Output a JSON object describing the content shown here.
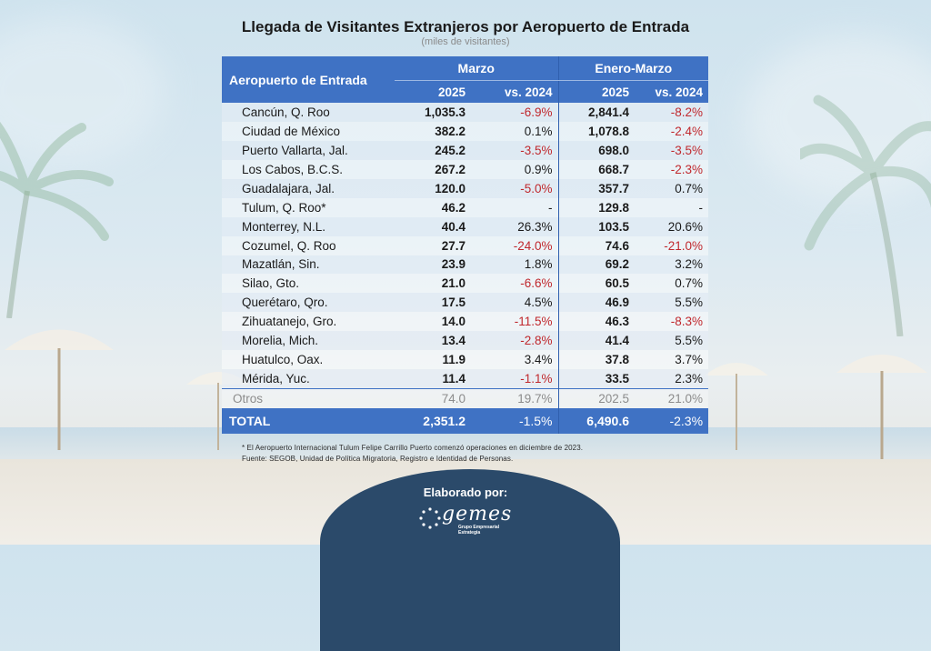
{
  "header": {
    "title": "Llegada de Visitantes Extranjeros por Aeropuerto de Entrada",
    "subtitle": "(miles de visitantes)"
  },
  "chart_data": {
    "type": "table",
    "columns": {
      "label": "Aeropuerto de Entrada",
      "groups": [
        "Marzo",
        "Enero-Marzo"
      ],
      "sub": [
        "2025",
        "vs. 2024",
        "2025",
        "vs. 2024"
      ]
    },
    "rows": [
      {
        "name": "Cancún, Q. Roo",
        "mar_2025": "1,035.3",
        "mar_vs": "-6.9%",
        "ytd_2025": "2,841.4",
        "ytd_vs": "-8.2%"
      },
      {
        "name": "Ciudad de México",
        "mar_2025": "382.2",
        "mar_vs": "0.1%",
        "ytd_2025": "1,078.8",
        "ytd_vs": "-2.4%"
      },
      {
        "name": "Puerto Vallarta, Jal.",
        "mar_2025": "245.2",
        "mar_vs": "-3.5%",
        "ytd_2025": "698.0",
        "ytd_vs": "-3.5%"
      },
      {
        "name": "Los Cabos, B.C.S.",
        "mar_2025": "267.2",
        "mar_vs": "0.9%",
        "ytd_2025": "668.7",
        "ytd_vs": "-2.3%"
      },
      {
        "name": "Guadalajara, Jal.",
        "mar_2025": "120.0",
        "mar_vs": "-5.0%",
        "ytd_2025": "357.7",
        "ytd_vs": "0.7%"
      },
      {
        "name": "Tulum, Q. Roo*",
        "mar_2025": "46.2",
        "mar_vs": "-",
        "ytd_2025": "129.8",
        "ytd_vs": "-"
      },
      {
        "name": "Monterrey, N.L.",
        "mar_2025": "40.4",
        "mar_vs": "26.3%",
        "ytd_2025": "103.5",
        "ytd_vs": "20.6%"
      },
      {
        "name": "Cozumel, Q. Roo",
        "mar_2025": "27.7",
        "mar_vs": "-24.0%",
        "ytd_2025": "74.6",
        "ytd_vs": "-21.0%"
      },
      {
        "name": "Mazatlán, Sin.",
        "mar_2025": "23.9",
        "mar_vs": "1.8%",
        "ytd_2025": "69.2",
        "ytd_vs": "3.2%"
      },
      {
        "name": "Silao, Gto.",
        "mar_2025": "21.0",
        "mar_vs": "-6.6%",
        "ytd_2025": "60.5",
        "ytd_vs": "0.7%"
      },
      {
        "name": "Querétaro, Qro.",
        "mar_2025": "17.5",
        "mar_vs": "4.5%",
        "ytd_2025": "46.9",
        "ytd_vs": "5.5%"
      },
      {
        "name": "Zihuatanejo, Gro.",
        "mar_2025": "14.0",
        "mar_vs": "-11.5%",
        "ytd_2025": "46.3",
        "ytd_vs": "-8.3%"
      },
      {
        "name": "Morelia, Mich.",
        "mar_2025": "13.4",
        "mar_vs": "-2.8%",
        "ytd_2025": "41.4",
        "ytd_vs": "5.5%"
      },
      {
        "name": "Huatulco, Oax.",
        "mar_2025": "11.9",
        "mar_vs": "3.4%",
        "ytd_2025": "37.8",
        "ytd_vs": "3.7%"
      },
      {
        "name": "Mérida, Yuc.",
        "mar_2025": "11.4",
        "mar_vs": "-1.1%",
        "ytd_2025": "33.5",
        "ytd_vs": "2.3%"
      }
    ],
    "otros": {
      "name": "Otros",
      "mar_2025": "74.0",
      "mar_vs": "19.7%",
      "ytd_2025": "202.5",
      "ytd_vs": "21.0%"
    },
    "total": {
      "name": "TOTAL",
      "mar_2025": "2,351.2",
      "mar_vs": "-1.5%",
      "ytd_2025": "6,490.6",
      "ytd_vs": "-2.3%"
    }
  },
  "footnotes": {
    "note1": "* El Aeropuerto Internacional Tulum Felipe Carrillo Puerto comenzó operaciones en diciembre de 2023.",
    "note2": "Fuente: SEGOB, Unidad de Política Migratoria, Registro e Identidad de Personas."
  },
  "footer": {
    "elaborado": "Elaborado por:",
    "logo_text": "gemes",
    "logo_sub": "Grupo Empresarial Estrategia"
  },
  "colors": {
    "header_blue": "#3f72c4",
    "negative_red": "#c0282d",
    "badge_navy": "#2b4a6a"
  }
}
